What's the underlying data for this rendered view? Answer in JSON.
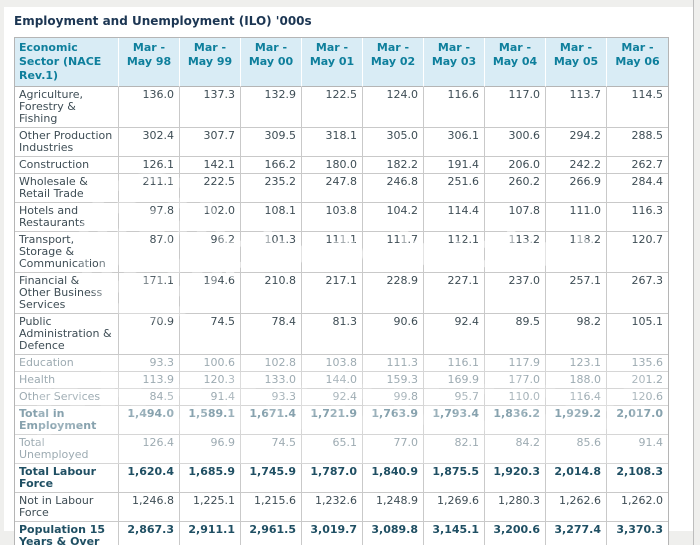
{
  "chart_data": {
    "type": "table",
    "title": "Employment and Unemployment (ILO) '000s",
    "sector_header": "Economic Sector (NACE Rev.1)",
    "period_headers": [
      "Mar - May 98",
      "Mar - May 99",
      "Mar - May 00",
      "Mar - May 01",
      "Mar - May 02",
      "Mar - May 03",
      "Mar - May 04",
      "Mar - May 05",
      "Mar - May 06"
    ],
    "rows": [
      {
        "label": "Agriculture, Forestry & Fishing",
        "values": [
          "136.0",
          "137.3",
          "132.9",
          "122.5",
          "124.0",
          "116.6",
          "117.0",
          "113.7",
          "114.5"
        ],
        "bold": false,
        "faded": false
      },
      {
        "label": "Other Production Industries",
        "values": [
          "302.4",
          "307.7",
          "309.5",
          "318.1",
          "305.0",
          "306.1",
          "300.6",
          "294.2",
          "288.5"
        ],
        "bold": false,
        "faded": false
      },
      {
        "label": "Construction",
        "values": [
          "126.1",
          "142.1",
          "166.2",
          "180.0",
          "182.2",
          "191.4",
          "206.0",
          "242.2",
          "262.7"
        ],
        "bold": false,
        "faded": false
      },
      {
        "label": "Wholesale & Retail Trade",
        "values": [
          "211.1",
          "222.5",
          "235.2",
          "247.8",
          "246.8",
          "251.6",
          "260.2",
          "266.9",
          "284.4"
        ],
        "bold": false,
        "faded": false
      },
      {
        "label": "Hotels and Restaurants",
        "values": [
          "97.8",
          "102.0",
          "108.1",
          "103.8",
          "104.2",
          "114.4",
          "107.8",
          "111.0",
          "116.3"
        ],
        "bold": false,
        "faded": false
      },
      {
        "label": "Transport, Storage & Communication",
        "values": [
          "87.0",
          "96.2",
          "101.3",
          "111.1",
          "111.7",
          "112.1",
          "113.2",
          "118.2",
          "120.7"
        ],
        "bold": false,
        "faded": false
      },
      {
        "label": "Financial & Other Business Services",
        "values": [
          "171.1",
          "194.6",
          "210.8",
          "217.1",
          "228.9",
          "227.1",
          "237.0",
          "257.1",
          "267.3"
        ],
        "bold": false,
        "faded": false
      },
      {
        "label": "Public Administration & Defence",
        "values": [
          "70.9",
          "74.5",
          "78.4",
          "81.3",
          "90.6",
          "92.4",
          "89.5",
          "98.2",
          "105.1"
        ],
        "bold": false,
        "faded": false
      },
      {
        "label": "Education",
        "values": [
          "93.3",
          "100.6",
          "102.8",
          "103.8",
          "111.3",
          "116.1",
          "117.9",
          "123.1",
          "135.6"
        ],
        "bold": false,
        "faded": true
      },
      {
        "label": "Health",
        "values": [
          "113.9",
          "120.3",
          "133.0",
          "144.0",
          "159.3",
          "169.9",
          "177.0",
          "188.0",
          "201.2"
        ],
        "bold": false,
        "faded": true
      },
      {
        "label": "Other Services",
        "values": [
          "84.5",
          "91.4",
          "93.3",
          "92.4",
          "99.8",
          "95.7",
          "110.0",
          "116.4",
          "120.6"
        ],
        "bold": false,
        "faded": true
      },
      {
        "label": "Total in Employment",
        "values": [
          "1,494.0",
          "1,589.1",
          "1,671.4",
          "1,721.9",
          "1,763.9",
          "1,793.4",
          "1,836.2",
          "1,929.2",
          "2,017.0"
        ],
        "bold": true,
        "faded": true
      },
      {
        "label": "Total Unemployed",
        "values": [
          "126.4",
          "96.9",
          "74.5",
          "65.1",
          "77.0",
          "82.1",
          "84.2",
          "85.6",
          "91.4"
        ],
        "bold": false,
        "faded": true
      },
      {
        "label": "Total Labour Force",
        "values": [
          "1,620.4",
          "1,685.9",
          "1,745.9",
          "1,787.0",
          "1,840.9",
          "1,875.5",
          "1,920.3",
          "2,014.8",
          "2,108.3"
        ],
        "bold": true,
        "faded": false
      },
      {
        "label": "Not in Labour Force",
        "values": [
          "1,246.8",
          "1,225.1",
          "1,215.6",
          "1,232.6",
          "1,248.9",
          "1,269.6",
          "1,280.3",
          "1,262.6",
          "1,262.0"
        ],
        "bold": false,
        "faded": false
      },
      {
        "label": "Population 15 Years & Over",
        "values": [
          "2,867.3",
          "2,911.1",
          "2,961.5",
          "3,019.7",
          "3,089.8",
          "3,145.1",
          "3,200.6",
          "3,277.4",
          "3,370.3"
        ],
        "bold": true,
        "faded": false
      }
    ]
  },
  "watermark": {
    "text": "photobucket",
    "lens_icon": "concentric-circles"
  },
  "colors": {
    "page_bg": "#efefed",
    "content_bg": "#ffffff",
    "header_bg": "#d9ecf5",
    "header_text": "#0e7f9c",
    "title_text": "#1c3653",
    "body_text": "#3e4d55",
    "total_text": "#1f4f63",
    "grid_line": "#c9c9c9",
    "watermark": "#ffffff"
  }
}
